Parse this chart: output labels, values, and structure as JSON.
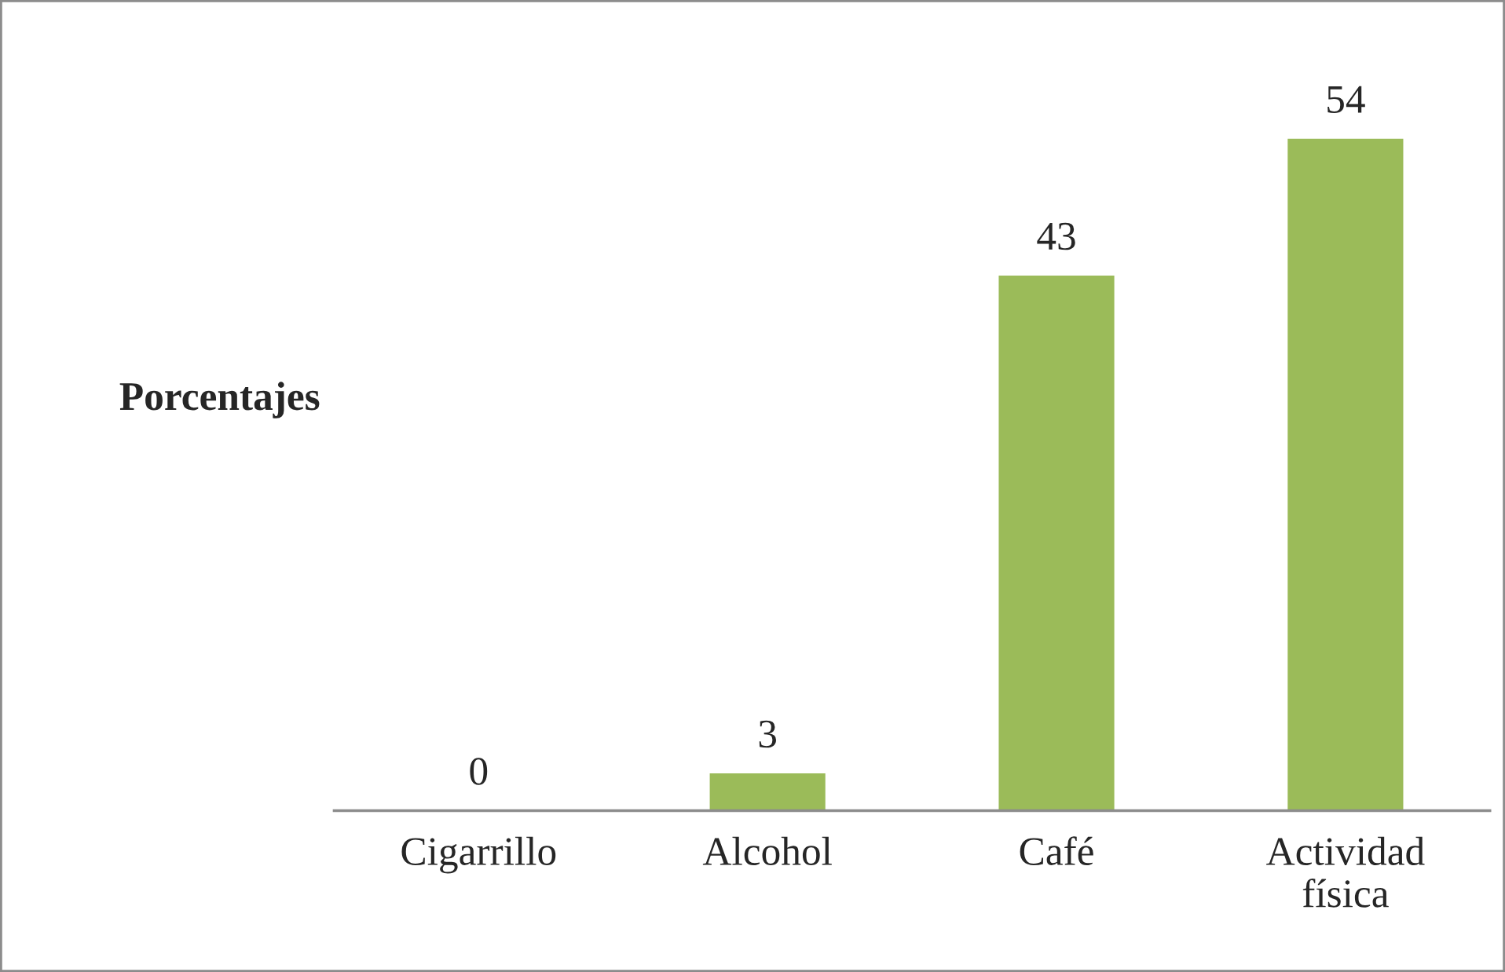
{
  "chart_data": {
    "type": "bar",
    "ylabel": "Porcentajes",
    "categories": [
      "Cigarrillo",
      "Alcohol",
      "Café",
      "Actividad\nfísica"
    ],
    "values": [
      0,
      3,
      43,
      54
    ],
    "color": "#9bbb59",
    "data_labels": true,
    "tick_labels": "x"
  }
}
